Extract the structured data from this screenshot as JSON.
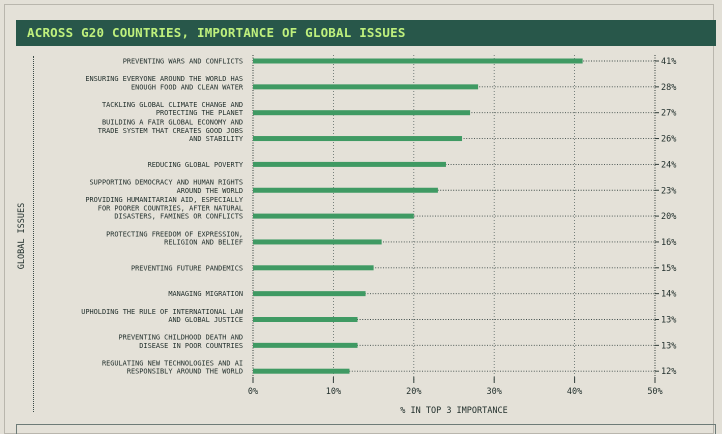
{
  "title": "ACROSS G20 COUNTRIES, IMPORTANCE OF GLOBAL ISSUES",
  "colors": {
    "header_bg": "#28574a",
    "header_text": "#bff07d",
    "bar": "#3f9a63",
    "background": "#e4e1d8",
    "text": "#1f2d2a"
  },
  "chart_data": {
    "type": "bar",
    "orientation": "horizontal",
    "title": "ACROSS G20 COUNTRIES, IMPORTANCE OF GLOBAL ISSUES",
    "xlabel": "% IN TOP 3 IMPORTANCE",
    "ylabel": "GLOBAL ISSUES",
    "xlim": [
      0,
      50
    ],
    "xticks": [
      "0%",
      "10%",
      "20%",
      "30%",
      "40%",
      "50%"
    ],
    "categories": [
      [
        "PREVENTING WARS AND CONFLICTS"
      ],
      [
        "ENSURING EVERYONE AROUND THE WORLD HAS",
        "ENOUGH FOOD AND CLEAN WATER"
      ],
      [
        "TACKLING GLOBAL CLIMATE CHANGE AND",
        "PROTECTING THE PLANET"
      ],
      [
        "BUILDING A FAIR GLOBAL ECONOMY AND",
        "TRADE SYSTEM THAT CREATES GOOD JOBS",
        "AND STABILITY"
      ],
      [
        "REDUCING GLOBAL POVERTY"
      ],
      [
        "SUPPORTING DEMOCRACY AND HUMAN RIGHTS",
        "AROUND THE WORLD"
      ],
      [
        "PROVIDING HUMANITARIAN AID, ESPECIALLY",
        "FOR POORER COUNTRIES, AFTER NATURAL",
        "DISASTERS, FAMINES OR CONFLICTS"
      ],
      [
        "PROTECTING FREEDOM OF EXPRESSION,",
        "RELIGION AND BELIEF"
      ],
      [
        "PREVENTING FUTURE PANDEMICS"
      ],
      [
        "MANAGING MIGRATION"
      ],
      [
        "UPHOLDING THE RULE OF INTERNATIONAL LAW",
        "AND GLOBAL JUSTICE"
      ],
      [
        "PREVENTING CHILDHOOD DEATH AND",
        "DISEASE IN POOR COUNTRIES"
      ],
      [
        "REGULATING NEW TECHNOLOGIES AND AI",
        "RESPONSIBLY AROUND THE WORLD"
      ]
    ],
    "values": [
      41,
      28,
      27,
      26,
      24,
      23,
      20,
      16,
      15,
      14,
      13,
      13,
      12
    ],
    "value_labels": [
      "41%",
      "28%",
      "27%",
      "26%",
      "24%",
      "23%",
      "20%",
      "16%",
      "15%",
      "14%",
      "13%",
      "13%",
      "12%"
    ],
    "grid": true
  }
}
